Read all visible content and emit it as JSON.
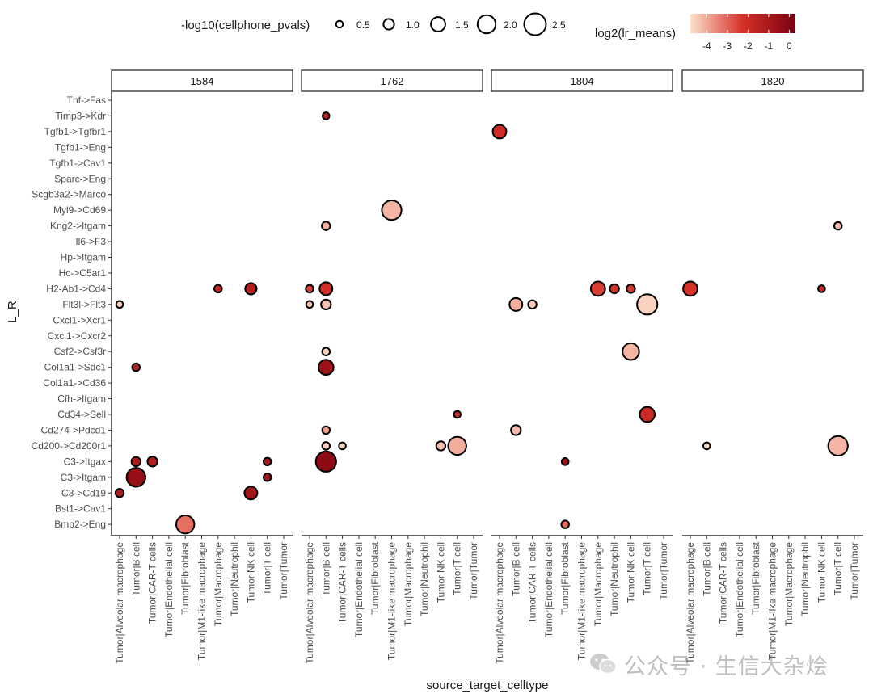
{
  "chart_data": {
    "type": "scatter",
    "subtype": "faceted dot plot",
    "xlabel": "source_target_celltype",
    "ylabel": "L_R",
    "size_legend": {
      "title": "-log10(cellphone_pvals)",
      "breaks": [
        0.5,
        1.0,
        1.5,
        2.0,
        2.5
      ],
      "labels": [
        "0.5",
        "1.0",
        "1.5",
        "2.0",
        "2.5"
      ]
    },
    "color_legend": {
      "title": "log2(lr_means)",
      "min": -4.8,
      "max": 0.3,
      "breaks": [
        -4,
        -3,
        -2,
        -1,
        0
      ],
      "labels": [
        "-4",
        "-3",
        "-2",
        "-1",
        "0"
      ],
      "low_color": "#fde0cc",
      "high_color": "#7a0010"
    },
    "facets": [
      "1584",
      "1762",
      "1804",
      "1820"
    ],
    "categories": [
      "Tumor|Alveolar macrophage",
      "Tumor|B cell",
      "Tumor|CAR-T cells",
      "Tumor|Endothelial cell",
      "Tumor|Fibroblast",
      "Tumor|M1-like macrophage",
      "Tumor|Macrophage",
      "Tumor|Neutrophil",
      "Tumor|NK cell",
      "Tumor|T cell",
      "Tumor|Tumor"
    ],
    "lr_pairs": [
      "Tnf->Fas",
      "Timp3->Kdr",
      "Tgfb1->Tgfbr1",
      "Tgfb1->Eng",
      "Tgfb1->Cav1",
      "Sparc->Eng",
      "Scgb3a2->Marco",
      "Myl9->Cd69",
      "Kng2->Itgam",
      "Il6->F3",
      "Hp->Itgam",
      "Hc->C5ar1",
      "H2-Ab1->Cd4",
      "Flt3l->Flt3",
      "Cxcl1->Xcr1",
      "Cxcl1->Cxcr2",
      "Csf2->Csf3r",
      "Col1a1->Sdc1",
      "Col1a1->Cd36",
      "Cfh->Itgam",
      "Cd34->Sell",
      "Cd274->Pdcd1",
      "Cd200->Cd200r1",
      "C3->Itgax",
      "C3->Itgam",
      "C3->Cd19",
      "Bst1->Cav1",
      "Bmp2->Eng"
    ],
    "points": [
      {
        "facet": "1584",
        "x": "Tumor|Alveolar macrophage",
        "y": "Flt3l->Flt3",
        "pval": 0.5,
        "lr": -4.5
      },
      {
        "facet": "1584",
        "x": "Tumor|Alveolar macrophage",
        "y": "C3->Cd19",
        "pval": 0.7,
        "lr": -1.0
      },
      {
        "facet": "1584",
        "x": "Tumor|B cell",
        "y": "Col1a1->Sdc1",
        "pval": 0.6,
        "lr": -1.2
      },
      {
        "facet": "1584",
        "x": "Tumor|B cell",
        "y": "C3->Itgax",
        "pval": 0.8,
        "lr": -1.0
      },
      {
        "facet": "1584",
        "x": "Tumor|B cell",
        "y": "C3->Itgam",
        "pval": 2.1,
        "lr": -0.4
      },
      {
        "facet": "1584",
        "x": "Tumor|CAR-T cells",
        "y": "C3->Itgax",
        "pval": 0.9,
        "lr": -1.1
      },
      {
        "facet": "1584",
        "x": "Tumor|Fibroblast",
        "y": "Bmp2->Eng",
        "pval": 2.0,
        "lr": -3.0
      },
      {
        "facet": "1584",
        "x": "Tumor|Macrophage",
        "y": "H2-Ab1->Cd4",
        "pval": 0.6,
        "lr": -1.5
      },
      {
        "facet": "1584",
        "x": "Tumor|NK cell",
        "y": "H2-Ab1->Cd4",
        "pval": 1.1,
        "lr": -1.2
      },
      {
        "facet": "1584",
        "x": "Tumor|NK cell",
        "y": "C3->Cd19",
        "pval": 1.3,
        "lr": -0.7
      },
      {
        "facet": "1584",
        "x": "Tumor|T cell",
        "y": "C3->Itgax",
        "pval": 0.6,
        "lr": -0.8
      },
      {
        "facet": "1584",
        "x": "Tumor|T cell",
        "y": "C3->Itgam",
        "pval": 0.6,
        "lr": -0.8
      },
      {
        "facet": "1762",
        "x": "Tumor|Alveolar macrophage",
        "y": "H2-Ab1->Cd4",
        "pval": 0.6,
        "lr": -2.2
      },
      {
        "facet": "1762",
        "x": "Tumor|Alveolar macrophage",
        "y": "Flt3l->Flt3",
        "pval": 0.5,
        "lr": -4.3
      },
      {
        "facet": "1762",
        "x": "Tumor|B cell",
        "y": "Timp3->Kdr",
        "pval": 0.5,
        "lr": -1.3
      },
      {
        "facet": "1762",
        "x": "Tumor|B cell",
        "y": "Kng2->Itgam",
        "pval": 0.7,
        "lr": -4.0
      },
      {
        "facet": "1762",
        "x": "Tumor|B cell",
        "y": "H2-Ab1->Cd4",
        "pval": 1.3,
        "lr": -1.9
      },
      {
        "facet": "1762",
        "x": "Tumor|B cell",
        "y": "Flt3l->Flt3",
        "pval": 0.9,
        "lr": -4.3
      },
      {
        "facet": "1762",
        "x": "Tumor|B cell",
        "y": "Csf2->Csf3r",
        "pval": 0.6,
        "lr": -4.6
      },
      {
        "facet": "1762",
        "x": "Tumor|B cell",
        "y": "Col1a1->Sdc1",
        "pval": 1.6,
        "lr": -0.6
      },
      {
        "facet": "1762",
        "x": "Tumor|B cell",
        "y": "Cd274->Pdcd1",
        "pval": 0.6,
        "lr": -3.7
      },
      {
        "facet": "1762",
        "x": "Tumor|B cell",
        "y": "Cd200->Cd200r1",
        "pval": 0.6,
        "lr": -4.5
      },
      {
        "facet": "1762",
        "x": "Tumor|B cell",
        "y": "C3->Itgax",
        "pval": 2.3,
        "lr": -0.2
      },
      {
        "facet": "1762",
        "x": "Tumor|CAR-T cells",
        "y": "Cd200->Cd200r1",
        "pval": 0.5,
        "lr": -4.6
      },
      {
        "facet": "1762",
        "x": "Tumor|M1-like macrophage",
        "y": "Myl9->Cd69",
        "pval": 2.2,
        "lr": -4.1
      },
      {
        "facet": "1762",
        "x": "Tumor|NK cell",
        "y": "Cd200->Cd200r1",
        "pval": 0.8,
        "lr": -4.2
      },
      {
        "facet": "1762",
        "x": "Tumor|T cell",
        "y": "Cd34->Sell",
        "pval": 0.5,
        "lr": -1.5
      },
      {
        "facet": "1762",
        "x": "Tumor|T cell",
        "y": "Cd200->Cd200r1",
        "pval": 2.0,
        "lr": -4.0
      },
      {
        "facet": "1804",
        "x": "Tumor|Alveolar macrophage",
        "y": "Tgfb1->Tgfbr1",
        "pval": 1.4,
        "lr": -1.8
      },
      {
        "facet": "1804",
        "x": "Tumor|B cell",
        "y": "Flt3l->Flt3",
        "pval": 1.3,
        "lr": -4.0
      },
      {
        "facet": "1804",
        "x": "Tumor|B cell",
        "y": "Cd274->Pdcd1",
        "pval": 0.9,
        "lr": -4.2
      },
      {
        "facet": "1804",
        "x": "Tumor|CAR-T cells",
        "y": "Flt3l->Flt3",
        "pval": 0.7,
        "lr": -4.4
      },
      {
        "facet": "1804",
        "x": "Tumor|Fibroblast",
        "y": "C3->Itgax",
        "pval": 0.5,
        "lr": -0.6
      },
      {
        "facet": "1804",
        "x": "Tumor|Fibroblast",
        "y": "Bmp2->Eng",
        "pval": 0.6,
        "lr": -2.9
      },
      {
        "facet": "1804",
        "x": "Tumor|Macrophage",
        "y": "H2-Ab1->Cd4",
        "pval": 1.5,
        "lr": -2.2
      },
      {
        "facet": "1804",
        "x": "Tumor|Neutrophil",
        "y": "H2-Ab1->Cd4",
        "pval": 0.8,
        "lr": -2.0
      },
      {
        "facet": "1804",
        "x": "Tumor|NK cell",
        "y": "H2-Ab1->Cd4",
        "pval": 0.7,
        "lr": -2.1
      },
      {
        "facet": "1804",
        "x": "Tumor|NK cell",
        "y": "Csf2->Csf3r",
        "pval": 1.8,
        "lr": -4.1
      },
      {
        "facet": "1804",
        "x": "Tumor|T cell",
        "y": "Flt3l->Flt3",
        "pval": 2.3,
        "lr": -4.6
      },
      {
        "facet": "1804",
        "x": "Tumor|T cell",
        "y": "Cd34->Sell",
        "pval": 1.6,
        "lr": -1.7
      },
      {
        "facet": "1820",
        "x": "Tumor|Alveolar macrophage",
        "y": "H2-Ab1->Cd4",
        "pval": 1.5,
        "lr": -2.0
      },
      {
        "facet": "1820",
        "x": "Tumor|B cell",
        "y": "Cd200->Cd200r1",
        "pval": 0.5,
        "lr": -4.6
      },
      {
        "facet": "1820",
        "x": "Tumor|NK cell",
        "y": "H2-Ab1->Cd4",
        "pval": 0.5,
        "lr": -1.5
      },
      {
        "facet": "1820",
        "x": "Tumor|T cell",
        "y": "Kng2->Itgam",
        "pval": 0.6,
        "lr": -4.2
      },
      {
        "facet": "1820",
        "x": "Tumor|T cell",
        "y": "Cd200->Cd200r1",
        "pval": 2.2,
        "lr": -4.1
      }
    ]
  },
  "watermark": {
    "text": "公众号 · 生信大杂烩",
    "icon": "wechat-icon"
  }
}
